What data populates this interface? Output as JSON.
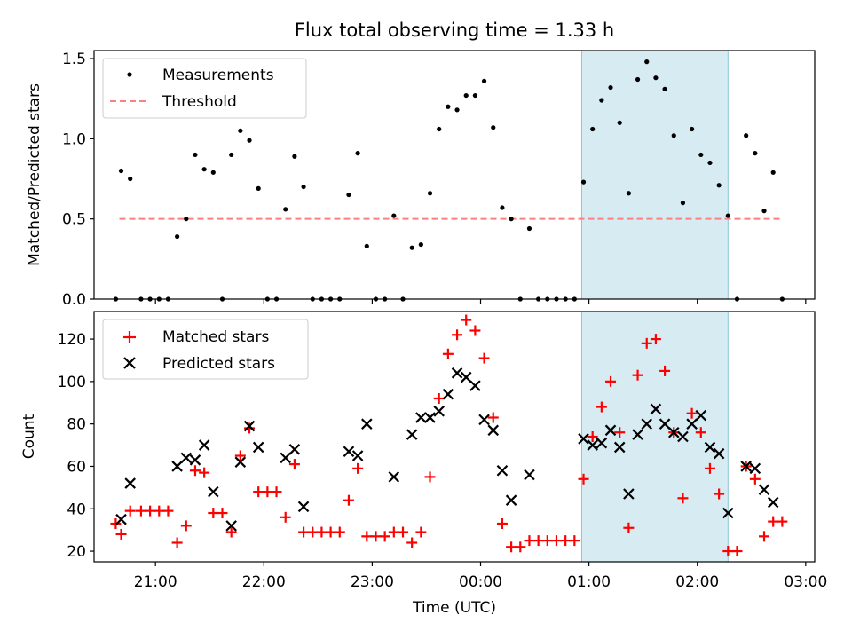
{
  "chart_data": [
    {
      "type": "scatter",
      "title": "Flux total observing time = 1.33 h",
      "ylabel": "Matched/Predicted stars",
      "ylim": [
        0,
        1.55
      ],
      "yticks": [
        "0.0",
        "0.5",
        "1.0",
        "1.5"
      ],
      "xlim": [
        "20:26",
        "03:05"
      ],
      "grid": false,
      "legend_position": "top-left",
      "highlight_span": [
        "00:56",
        "02:17"
      ],
      "series": [
        {
          "name": "Measurements",
          "color": "#000000",
          "marker": "dot",
          "points": [
            [
              "20:38",
              0.0
            ],
            [
              "20:41",
              0.8
            ],
            [
              "20:46",
              0.75
            ],
            [
              "20:52",
              0.0
            ],
            [
              "20:57",
              0.0
            ],
            [
              "21:02",
              0.0
            ],
            [
              "21:07",
              0.0
            ],
            [
              "21:12",
              0.39
            ],
            [
              "21:17",
              0.5
            ],
            [
              "21:22",
              0.9
            ],
            [
              "21:27",
              0.81
            ],
            [
              "21:32",
              0.79
            ],
            [
              "21:37",
              0.0
            ],
            [
              "21:42",
              0.9
            ],
            [
              "21:47",
              1.05
            ],
            [
              "21:52",
              0.99
            ],
            [
              "21:57",
              0.69
            ],
            [
              "22:02",
              0.0
            ],
            [
              "22:07",
              0.0
            ],
            [
              "22:12",
              0.56
            ],
            [
              "22:17",
              0.89
            ],
            [
              "22:22",
              0.7
            ],
            [
              "22:27",
              0.0
            ],
            [
              "22:32",
              0.0
            ],
            [
              "22:37",
              0.0
            ],
            [
              "22:42",
              0.0
            ],
            [
              "22:47",
              0.65
            ],
            [
              "22:52",
              0.91
            ],
            [
              "22:57",
              0.33
            ],
            [
              "23:02",
              0.0
            ],
            [
              "23:07",
              0.0
            ],
            [
              "23:12",
              0.52
            ],
            [
              "23:17",
              0.0
            ],
            [
              "23:22",
              0.32
            ],
            [
              "23:27",
              0.34
            ],
            [
              "23:32",
              0.66
            ],
            [
              "23:37",
              1.06
            ],
            [
              "23:42",
              1.2
            ],
            [
              "23:47",
              1.18
            ],
            [
              "23:52",
              1.27
            ],
            [
              "23:57",
              1.27
            ],
            [
              "00:02",
              1.36
            ],
            [
              "00:07",
              1.07
            ],
            [
              "00:12",
              0.57
            ],
            [
              "00:17",
              0.5
            ],
            [
              "00:22",
              0.0
            ],
            [
              "00:27",
              0.44
            ],
            [
              "00:32",
              0.0
            ],
            [
              "00:37",
              0.0
            ],
            [
              "00:42",
              0.0
            ],
            [
              "00:47",
              0.0
            ],
            [
              "00:52",
              0.0
            ],
            [
              "00:57",
              0.73
            ],
            [
              "01:02",
              1.06
            ],
            [
              "01:07",
              1.24
            ],
            [
              "01:12",
              1.32
            ],
            [
              "01:17",
              1.1
            ],
            [
              "01:22",
              0.66
            ],
            [
              "01:27",
              1.37
            ],
            [
              "01:32",
              1.48
            ],
            [
              "01:37",
              1.38
            ],
            [
              "01:42",
              1.31
            ],
            [
              "01:47",
              1.02
            ],
            [
              "01:52",
              0.6
            ],
            [
              "01:57",
              1.06
            ],
            [
              "02:02",
              0.9
            ],
            [
              "02:07",
              0.85
            ],
            [
              "02:12",
              0.71
            ],
            [
              "02:17",
              0.52
            ],
            [
              "02:22",
              0.0
            ],
            [
              "02:27",
              1.02
            ],
            [
              "02:32",
              0.91
            ],
            [
              "02:37",
              0.55
            ],
            [
              "02:42",
              0.79
            ],
            [
              "02:47",
              0.0
            ]
          ]
        },
        {
          "name": "Threshold",
          "color": "#ff7f7f",
          "style": "dashed",
          "points": [
            [
              "20:40",
              0.5
            ],
            [
              "02:47",
              0.5
            ]
          ]
        }
      ]
    },
    {
      "type": "scatter",
      "xlabel": "Time (UTC)",
      "ylabel": "Count",
      "ylim": [
        15,
        133
      ],
      "yticks": [
        "20",
        "40",
        "60",
        "80",
        "100",
        "120"
      ],
      "xlim": [
        "20:26",
        "03:05"
      ],
      "xticks": [
        "21:00",
        "22:00",
        "23:00",
        "00:00",
        "01:00",
        "02:00",
        "03:00"
      ],
      "grid": false,
      "legend_position": "top-left",
      "highlight_span": [
        "00:56",
        "02:17"
      ],
      "series": [
        {
          "name": "Matched stars",
          "color": "#ff0000",
          "marker": "plus",
          "points": [
            [
              "20:38",
              33
            ],
            [
              "20:41",
              28
            ],
            [
              "20:46",
              39
            ],
            [
              "20:52",
              39
            ],
            [
              "20:57",
              39
            ],
            [
              "21:02",
              39
            ],
            [
              "21:07",
              39
            ],
            [
              "21:12",
              24
            ],
            [
              "21:17",
              32
            ],
            [
              "21:22",
              58
            ],
            [
              "21:27",
              57
            ],
            [
              "21:32",
              38
            ],
            [
              "21:37",
              38
            ],
            [
              "21:42",
              29
            ],
            [
              "21:47",
              65
            ],
            [
              "21:52",
              78
            ],
            [
              "21:57",
              48
            ],
            [
              "22:02",
              48
            ],
            [
              "22:07",
              48
            ],
            [
              "22:12",
              36
            ],
            [
              "22:17",
              61
            ],
            [
              "22:22",
              29
            ],
            [
              "22:27",
              29
            ],
            [
              "22:32",
              29
            ],
            [
              "22:37",
              29
            ],
            [
              "22:42",
              29
            ],
            [
              "22:47",
              44
            ],
            [
              "22:52",
              59
            ],
            [
              "22:57",
              27
            ],
            [
              "23:02",
              27
            ],
            [
              "23:07",
              27
            ],
            [
              "23:12",
              29
            ],
            [
              "23:17",
              29
            ],
            [
              "23:22",
              24
            ],
            [
              "23:27",
              29
            ],
            [
              "23:32",
              55
            ],
            [
              "23:37",
              92
            ],
            [
              "23:42",
              113
            ],
            [
              "23:47",
              122
            ],
            [
              "23:52",
              129
            ],
            [
              "23:57",
              124
            ],
            [
              "00:02",
              111
            ],
            [
              "00:07",
              83
            ],
            [
              "00:12",
              33
            ],
            [
              "00:17",
              22
            ],
            [
              "00:22",
              22
            ],
            [
              "00:27",
              25
            ],
            [
              "00:32",
              25
            ],
            [
              "00:37",
              25
            ],
            [
              "00:42",
              25
            ],
            [
              "00:47",
              25
            ],
            [
              "00:52",
              25
            ],
            [
              "00:57",
              54
            ],
            [
              "01:02",
              74
            ],
            [
              "01:07",
              88
            ],
            [
              "01:12",
              100
            ],
            [
              "01:17",
              76
            ],
            [
              "01:22",
              31
            ],
            [
              "01:27",
              103
            ],
            [
              "01:32",
              118
            ],
            [
              "01:37",
              120
            ],
            [
              "01:42",
              105
            ],
            [
              "01:47",
              76
            ],
            [
              "01:52",
              45
            ],
            [
              "01:57",
              85
            ],
            [
              "02:02",
              76
            ],
            [
              "02:07",
              59
            ],
            [
              "02:12",
              47
            ],
            [
              "02:17",
              20
            ],
            [
              "02:22",
              20
            ],
            [
              "02:27",
              60
            ],
            [
              "02:32",
              54
            ],
            [
              "02:37",
              27
            ],
            [
              "02:42",
              34
            ],
            [
              "02:47",
              34
            ]
          ]
        },
        {
          "name": "Predicted stars",
          "color": "#000000",
          "marker": "x",
          "points": [
            [
              "20:41",
              35
            ],
            [
              "20:46",
              52
            ],
            [
              "21:12",
              60
            ],
            [
              "21:17",
              64
            ],
            [
              "21:22",
              63
            ],
            [
              "21:27",
              70
            ],
            [
              "21:32",
              48
            ],
            [
              "21:42",
              32
            ],
            [
              "21:47",
              62
            ],
            [
              "21:52",
              79
            ],
            [
              "21:57",
              69
            ],
            [
              "22:12",
              64
            ],
            [
              "22:17",
              68
            ],
            [
              "22:22",
              41
            ],
            [
              "22:47",
              67
            ],
            [
              "22:52",
              65
            ],
            [
              "22:57",
              80
            ],
            [
              "23:12",
              55
            ],
            [
              "23:22",
              75
            ],
            [
              "23:27",
              83
            ],
            [
              "23:32",
              83
            ],
            [
              "23:37",
              86
            ],
            [
              "23:42",
              94
            ],
            [
              "23:47",
              104
            ],
            [
              "23:52",
              102
            ],
            [
              "23:57",
              98
            ],
            [
              "00:02",
              82
            ],
            [
              "00:07",
              77
            ],
            [
              "00:12",
              58
            ],
            [
              "00:17",
              44
            ],
            [
              "00:27",
              56
            ],
            [
              "00:57",
              73
            ],
            [
              "01:02",
              70
            ],
            [
              "01:07",
              71
            ],
            [
              "01:12",
              77
            ],
            [
              "01:17",
              69
            ],
            [
              "01:22",
              47
            ],
            [
              "01:27",
              75
            ],
            [
              "01:32",
              80
            ],
            [
              "01:37",
              87
            ],
            [
              "01:42",
              80
            ],
            [
              "01:47",
              76
            ],
            [
              "01:52",
              74
            ],
            [
              "01:57",
              80
            ],
            [
              "02:02",
              84
            ],
            [
              "02:07",
              69
            ],
            [
              "02:12",
              66
            ],
            [
              "02:17",
              38
            ],
            [
              "02:27",
              60
            ],
            [
              "02:32",
              59
            ],
            [
              "02:37",
              49
            ],
            [
              "02:42",
              43
            ]
          ]
        }
      ]
    }
  ]
}
